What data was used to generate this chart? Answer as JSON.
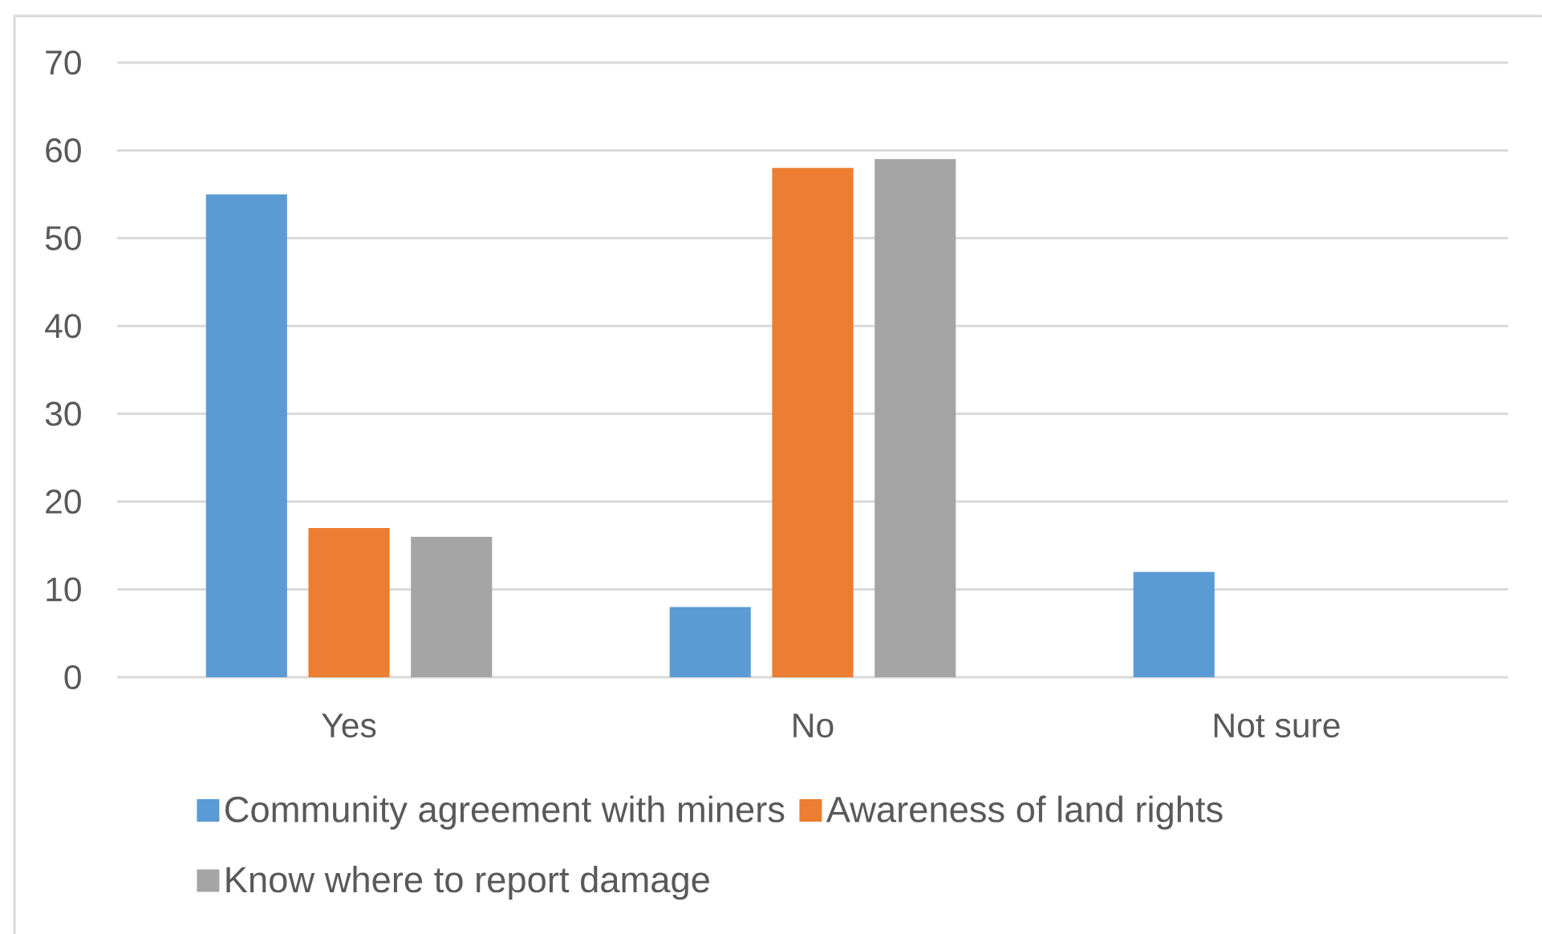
{
  "chart_data": {
    "type": "bar",
    "categories": [
      "Yes",
      "No",
      "Not sure"
    ],
    "series": [
      {
        "name": "Community agreement with miners",
        "color": "#5b9bd5",
        "values": [
          55,
          8,
          12
        ]
      },
      {
        "name": "Awareness of land rights",
        "color": "#ed7d31",
        "values": [
          17,
          58,
          null
        ]
      },
      {
        "name": "Know where to report damage",
        "color": "#a5a5a5",
        "values": [
          16,
          59,
          null
        ]
      }
    ],
    "ylim": [
      0,
      70
    ],
    "yticks": [
      0,
      10,
      20,
      30,
      40,
      50,
      60,
      70
    ],
    "grid": "y",
    "legend": "bottom"
  }
}
